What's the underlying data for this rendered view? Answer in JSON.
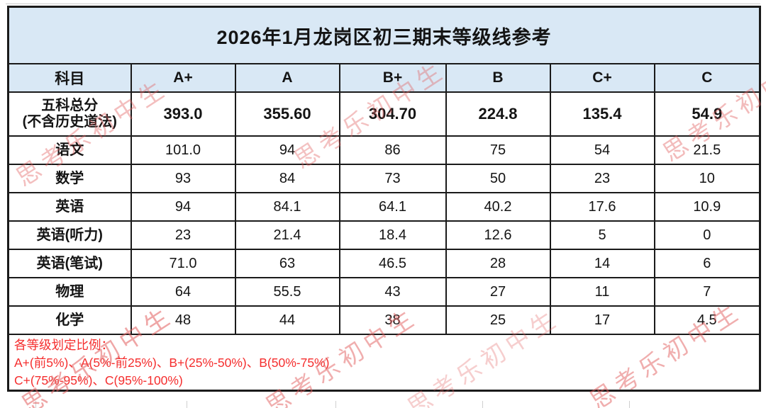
{
  "title": "2026年1月龙岗区初三期末等级线参考",
  "table": {
    "columns": [
      "科目",
      "A+",
      "A",
      "B+",
      "B",
      "C+",
      "C"
    ],
    "rows": [
      {
        "subject": "五科总分",
        "subject_sub": "(不含历史道法)",
        "bold": true,
        "values": [
          "393.0",
          "355.60",
          "304.70",
          "224.8",
          "135.4",
          "54.9"
        ]
      },
      {
        "subject": "语文",
        "values": [
          "101.0",
          "94",
          "86",
          "75",
          "54",
          "21.5"
        ]
      },
      {
        "subject": "数学",
        "values": [
          "93",
          "84",
          "73",
          "50",
          "23",
          "10"
        ]
      },
      {
        "subject": "英语",
        "values": [
          "94",
          "84.1",
          "64.1",
          "40.2",
          "17.6",
          "10.9"
        ]
      },
      {
        "subject": "英语(听力)",
        "values": [
          "23",
          "21.4",
          "18.4",
          "12.6",
          "5",
          "0"
        ]
      },
      {
        "subject": "英语(笔试)",
        "values": [
          "71.0",
          "63",
          "46.5",
          "28",
          "14",
          "6"
        ]
      },
      {
        "subject": "物理",
        "values": [
          "64",
          "55.5",
          "43",
          "27",
          "11",
          "7"
        ]
      },
      {
        "subject": "化学",
        "values": [
          "48",
          "44",
          "38",
          "25",
          "17",
          "4.5"
        ]
      }
    ]
  },
  "note": {
    "heading": "各等级划定比例：",
    "line2": "A+(前5%)、A(5%-前25%)、B+(25%-50%)、B(50%-75%)",
    "line3": "C+(75%-95%)、C(95%-100%)"
  },
  "watermark": {
    "text": "思考乐初中生"
  },
  "colors": {
    "header_bg": "#d9e8f5",
    "border": "#1a1a1a",
    "note_red": "#f52e2e",
    "watermark_red": "#e25f5f"
  }
}
